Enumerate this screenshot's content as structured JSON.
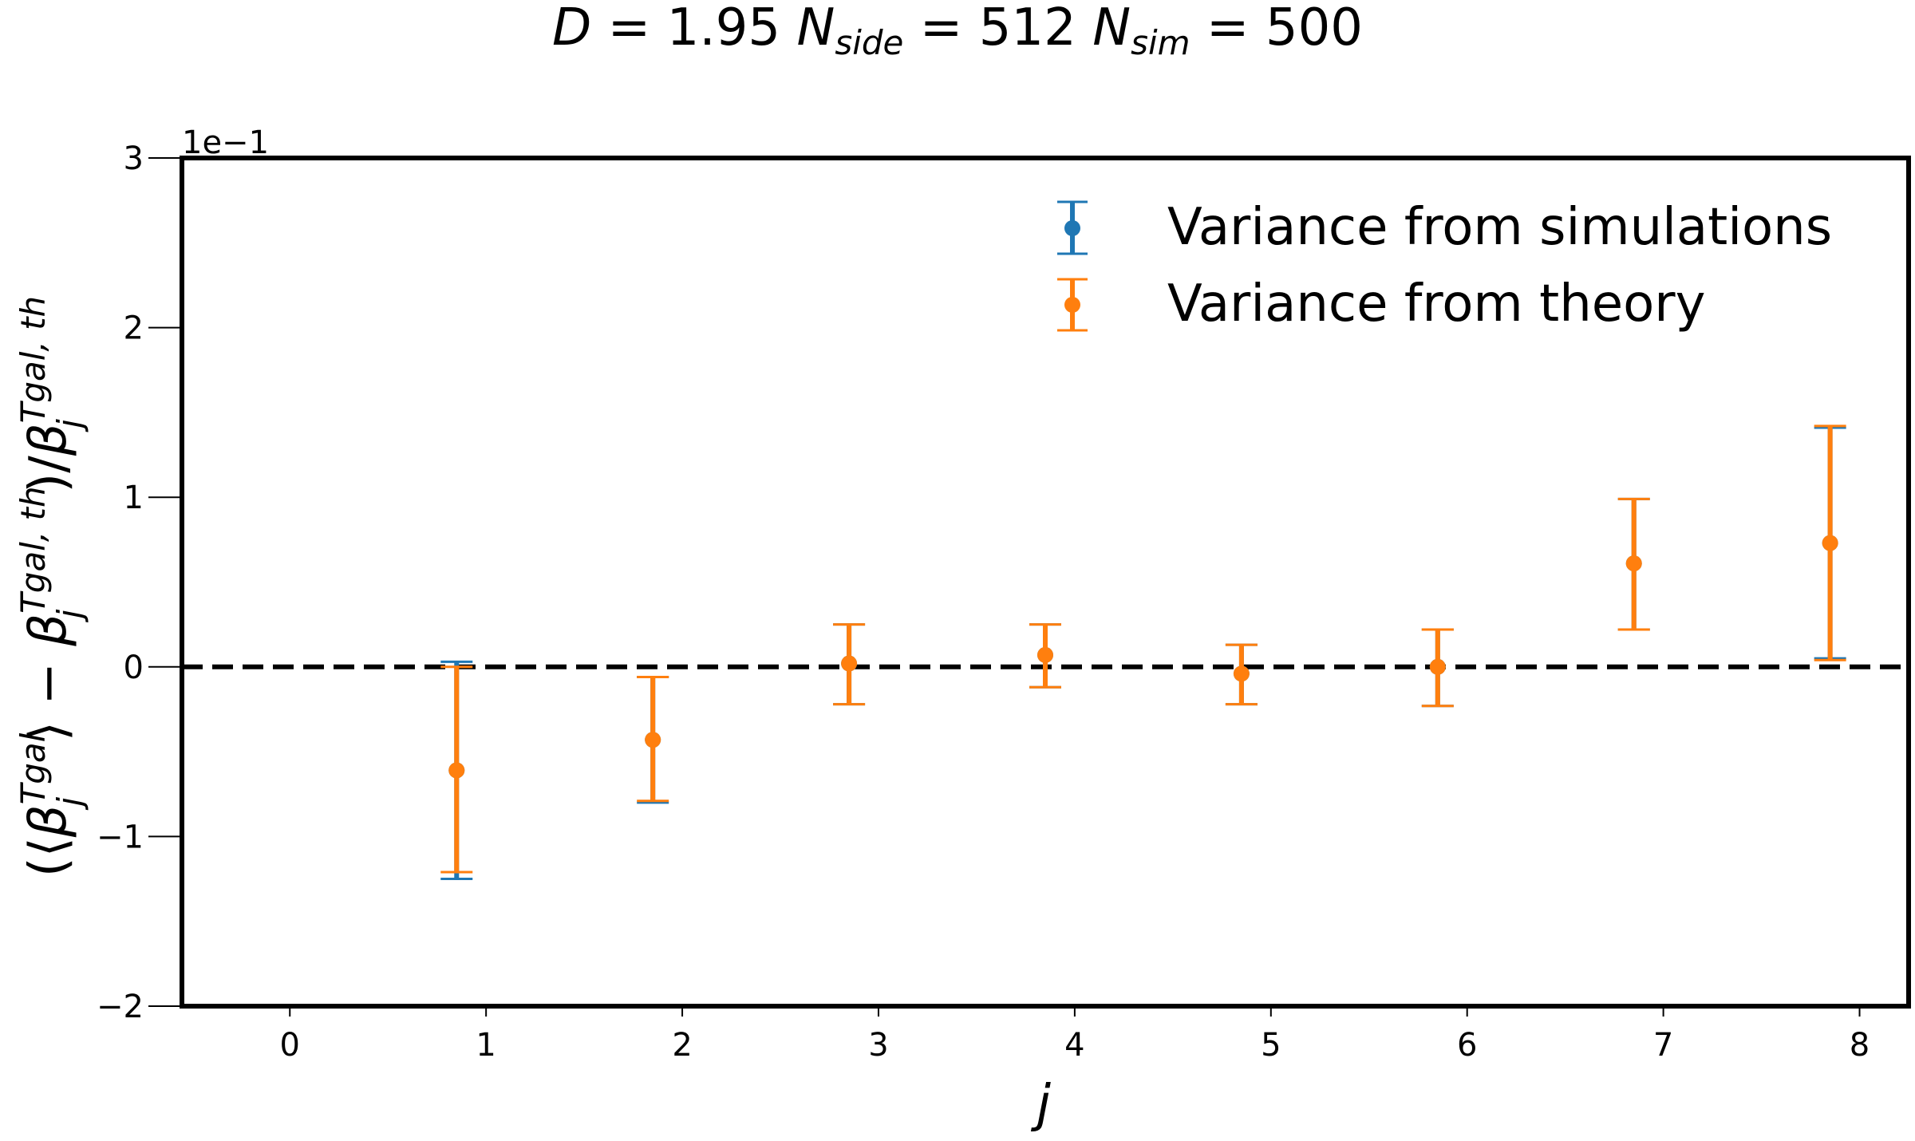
{
  "chart_data": {
    "type": "scatter",
    "title_parts": {
      "D_sym": "D",
      "D_val": " = 1.95 ",
      "nside_sym": "N",
      "nside_sub": "side",
      "nside_val": " = 512 ",
      "nsim_sym": "N",
      "nsim_sub": "sim",
      "nsim_val": " = 500"
    },
    "xlabel": "j",
    "ylabel": "(⟨β_j^{Tgal}⟩ − β_j^{Tgal, th})/β_j^{Tgal, th}",
    "ylabel_parts": {
      "open": "(⟨",
      "beta1": "β",
      "sup1": "Tgal",
      "sub1": "j",
      "mid": "⟩ − ",
      "beta2": "β",
      "sup2": "Tgal, th",
      "sub2": "j",
      "slash": ")/",
      "beta3": "β",
      "sup3": "Tgal, th",
      "sub3": "j"
    },
    "y_scale_label": "1e−1",
    "xlim": [
      -0.55,
      8.25
    ],
    "ylim": [
      -2,
      3
    ],
    "x_ticks": [
      {
        "value": 0,
        "label": "0"
      },
      {
        "value": 1,
        "label": "1"
      },
      {
        "value": 2,
        "label": "2"
      },
      {
        "value": 3,
        "label": "3"
      },
      {
        "value": 4,
        "label": "4"
      },
      {
        "value": 5,
        "label": "5"
      },
      {
        "value": 6,
        "label": "6"
      },
      {
        "value": 7,
        "label": "7"
      },
      {
        "value": 8,
        "label": "8"
      }
    ],
    "y_ticks": [
      {
        "value": -2,
        "label": "−2"
      },
      {
        "value": -1,
        "label": "−1"
      },
      {
        "value": 0,
        "label": "0"
      },
      {
        "value": 1,
        "label": "1"
      },
      {
        "value": 2,
        "label": "2"
      },
      {
        "value": 3,
        "label": "3"
      }
    ],
    "reference_line": {
      "y": 0,
      "style": "dashed",
      "color": "#000000"
    },
    "grid": false,
    "legend_position": "top-right",
    "series": [
      {
        "name": "Variance from simulations",
        "color": "#1f77b4",
        "x": [
          0.85,
          1.85,
          2.85,
          3.85,
          4.85,
          5.85,
          6.85,
          7.85
        ],
        "y": [
          -0.61,
          -0.43,
          0.02,
          0.07,
          -0.04,
          0.0,
          0.61,
          0.73
        ],
        "yerr_low": [
          -1.25,
          -0.8,
          -0.22,
          -0.12,
          -0.22,
          -0.23,
          0.22,
          0.05
        ],
        "yerr_high": [
          0.03,
          -0.06,
          0.25,
          0.25,
          0.13,
          0.22,
          0.99,
          1.41
        ]
      },
      {
        "name": "Variance from theory",
        "color": "#ff7f0e",
        "x": [
          0.85,
          1.85,
          2.85,
          3.85,
          4.85,
          5.85,
          6.85,
          7.85
        ],
        "y": [
          -0.61,
          -0.43,
          0.02,
          0.07,
          -0.04,
          0.0,
          0.61,
          0.73
        ],
        "yerr_low": [
          -1.21,
          -0.79,
          -0.22,
          -0.12,
          -0.22,
          -0.23,
          0.22,
          0.04
        ],
        "yerr_high": [
          0.0,
          -0.06,
          0.25,
          0.25,
          0.13,
          0.22,
          0.99,
          1.42
        ]
      }
    ]
  }
}
